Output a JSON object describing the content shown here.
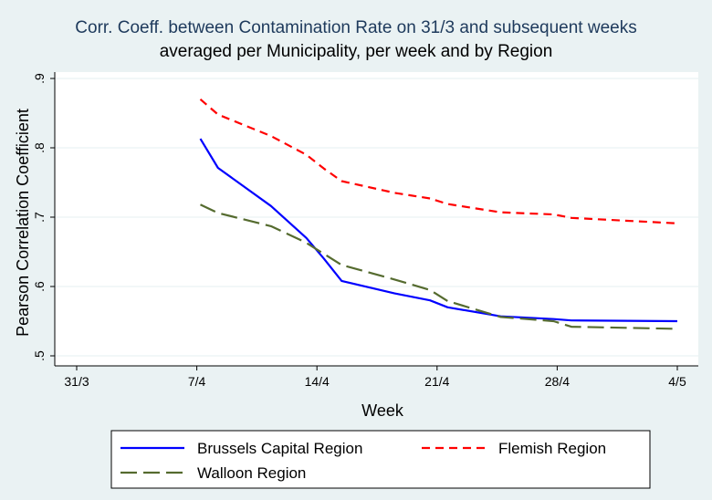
{
  "chart_data": {
    "type": "line",
    "title": "Corr. Coeff. between Contamination Rate on 31/3 and subsequent weeks",
    "subtitle": "averaged per Municipality, per week and by Region",
    "xlabel": "Week",
    "ylabel": "Pearson Correlation Coefficient",
    "x_ticks": [
      "31/3",
      "7/4",
      "14/4",
      "21/4",
      "28/4",
      "4/5"
    ],
    "y_ticks": [
      ".5",
      ".6",
      ".7",
      ".8",
      ".9"
    ],
    "ylim": [
      0.5,
      0.9
    ],
    "xlim": [
      0,
      34
    ],
    "grid": "horizontal",
    "legend_position": "bottom",
    "series": [
      {
        "name": "Brussels Capital Region",
        "color": "#0000ff",
        "style": "solid",
        "x": [
          7,
          8,
          11,
          13,
          14,
          15,
          18,
          20,
          21,
          24,
          27,
          28,
          34
        ],
        "y": [
          0.813,
          0.771,
          0.716,
          0.67,
          0.64,
          0.608,
          0.59,
          0.58,
          0.57,
          0.557,
          0.553,
          0.551,
          0.55
        ]
      },
      {
        "name": "Flemish Region",
        "color": "#ff0000",
        "style": "dash",
        "x": [
          7,
          8,
          11,
          13,
          14,
          15,
          18,
          20,
          21,
          24,
          27,
          28,
          34
        ],
        "y": [
          0.87,
          0.848,
          0.817,
          0.79,
          0.77,
          0.752,
          0.735,
          0.727,
          0.719,
          0.707,
          0.704,
          0.699,
          0.691
        ]
      },
      {
        "name": "Walloon Region",
        "color": "#556b2f",
        "style": "longdash",
        "x": [
          7,
          8,
          11,
          13,
          14,
          15,
          18,
          20,
          21,
          24,
          27,
          28,
          34
        ],
        "y": [
          0.718,
          0.706,
          0.687,
          0.663,
          0.647,
          0.631,
          0.61,
          0.595,
          0.579,
          0.556,
          0.55,
          0.542,
          0.539
        ]
      }
    ]
  }
}
